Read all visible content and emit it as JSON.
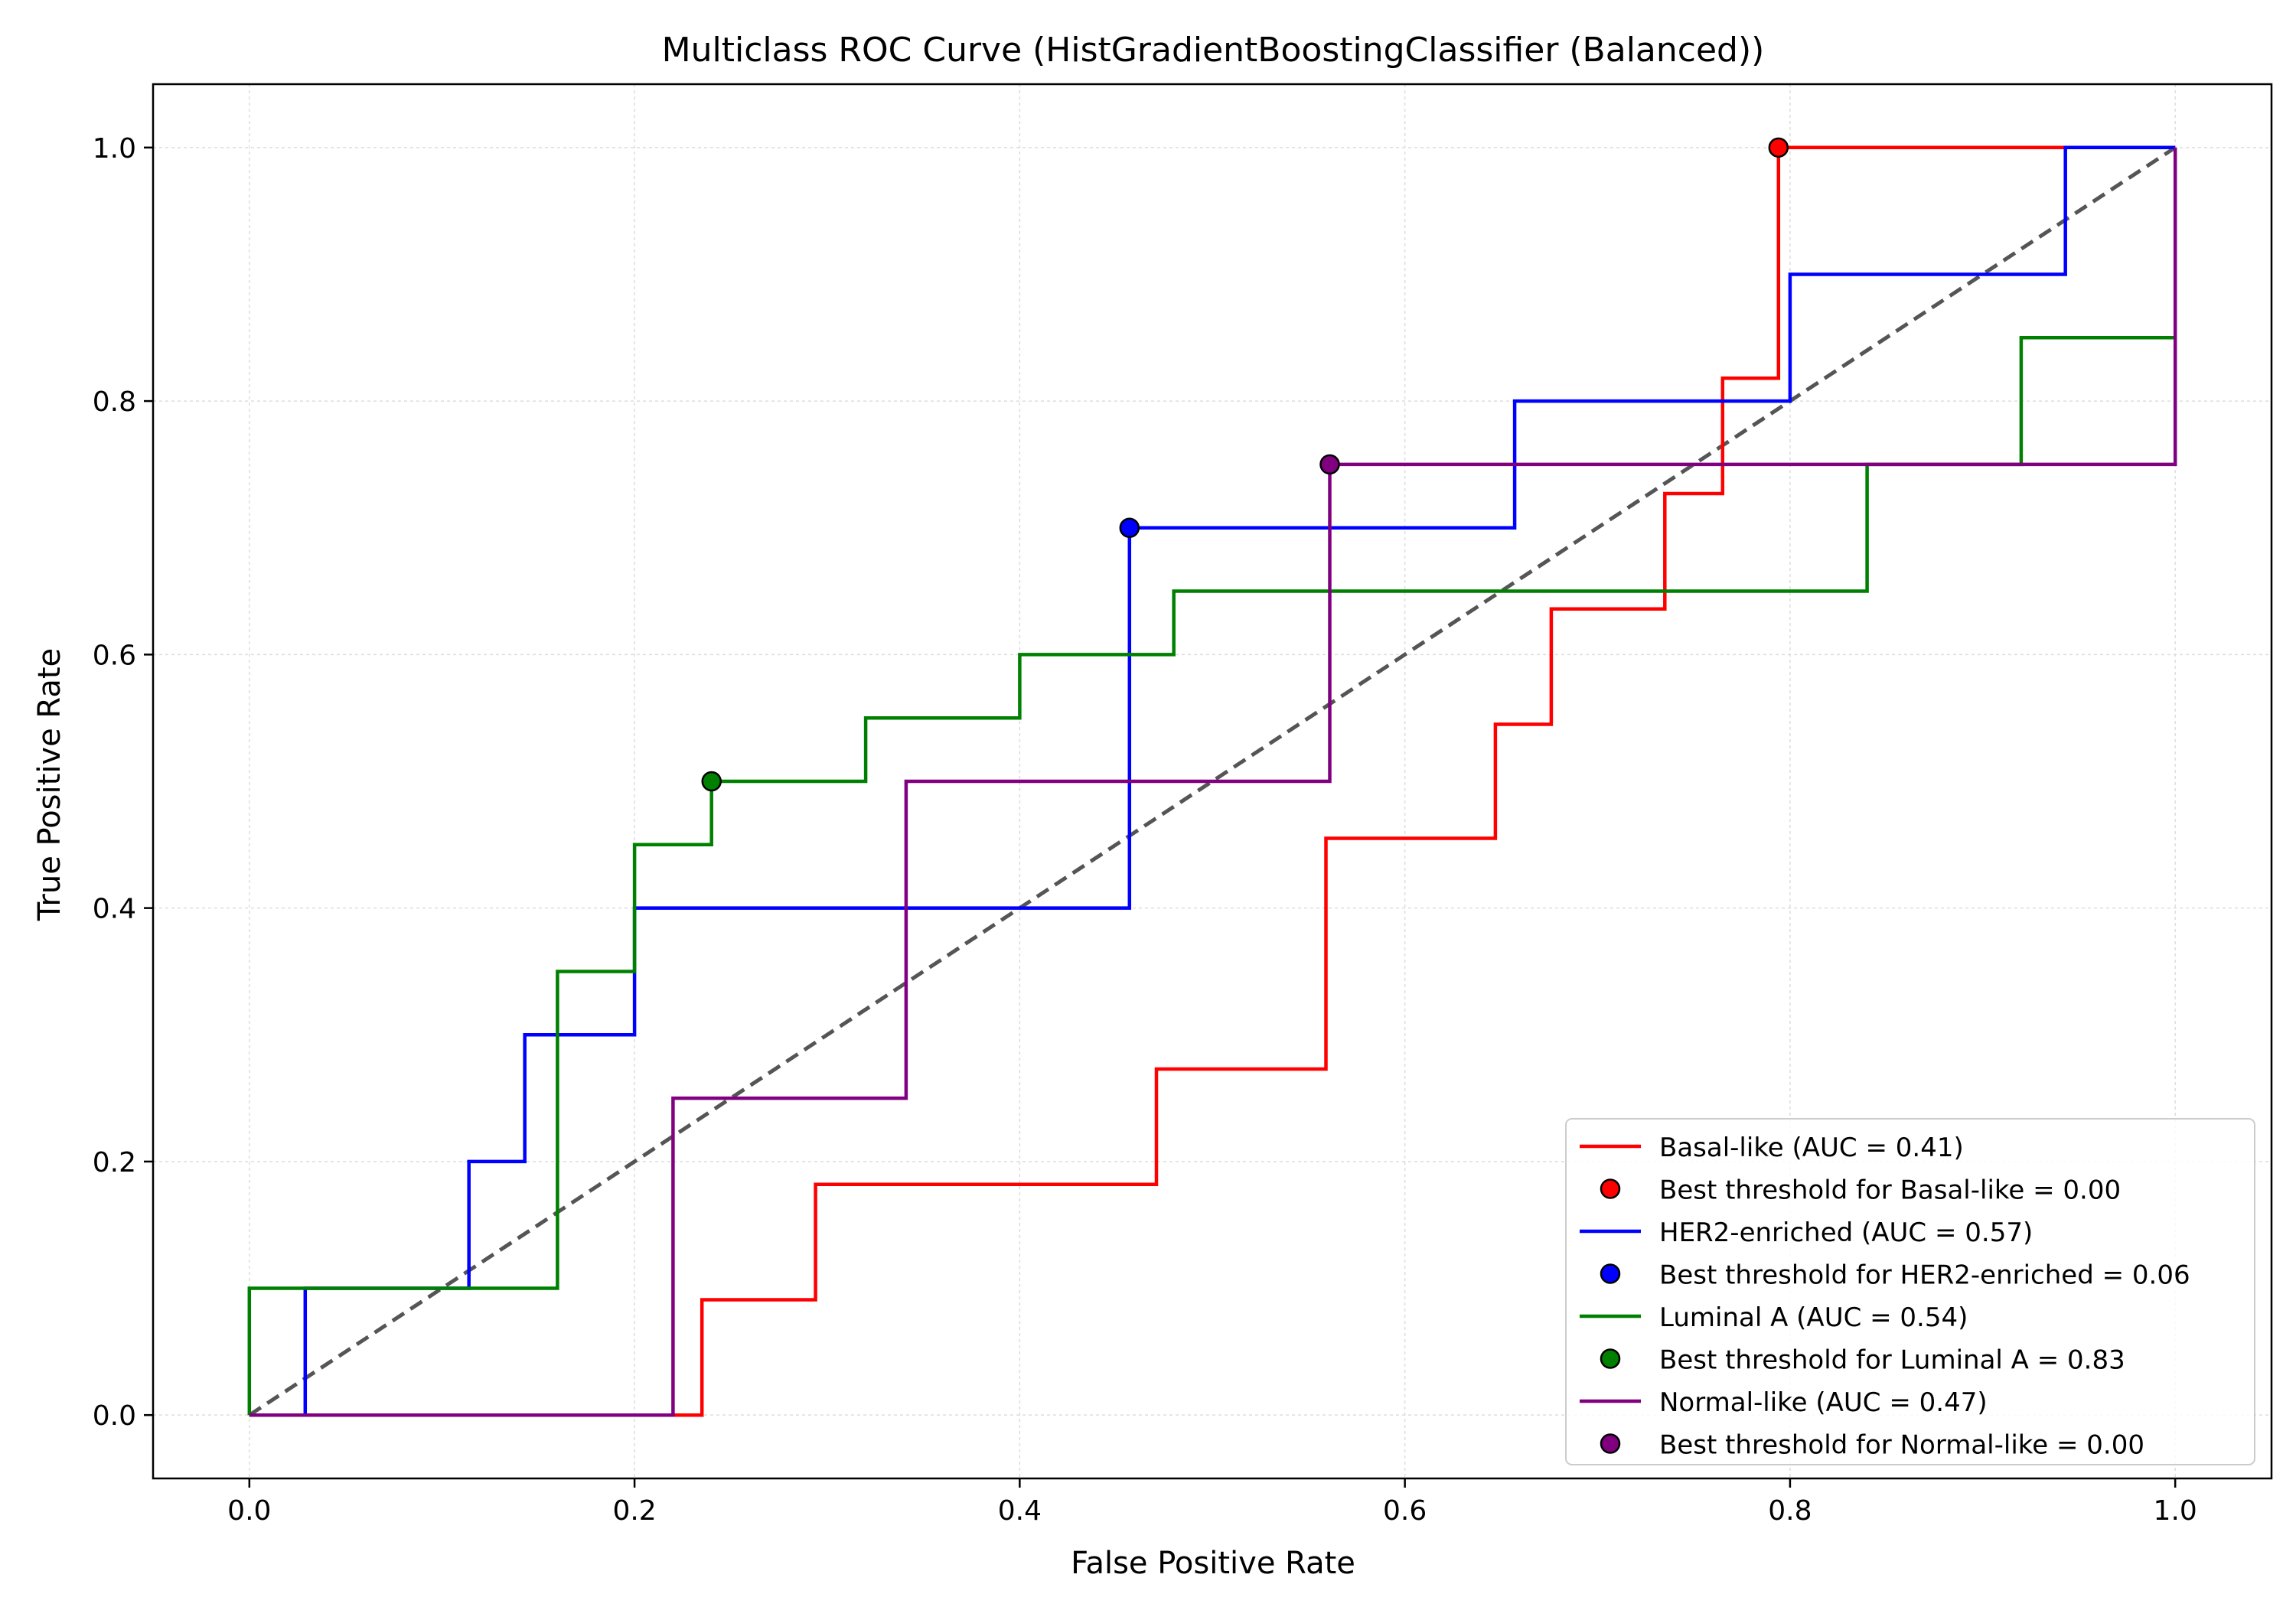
{
  "chart_data": {
    "type": "line",
    "title": "Multiclass ROC Curve (HistGradientBoostingClassifier (Balanced))",
    "xlabel": "False Positive Rate",
    "ylabel": "True Positive Rate",
    "xlim": [
      -0.05,
      1.05
    ],
    "ylim": [
      -0.05,
      1.05
    ],
    "xticks": [
      0.0,
      0.2,
      0.4,
      0.6,
      0.8,
      1.0
    ],
    "yticks": [
      0.0,
      0.2,
      0.4,
      0.6,
      0.8,
      1.0
    ],
    "tick_labels": {
      "x": [
        "0.0",
        "0.2",
        "0.4",
        "0.6",
        "0.8",
        "1.0"
      ],
      "y": [
        "0.0",
        "0.2",
        "0.4",
        "0.6",
        "0.8",
        "1.0"
      ]
    },
    "grid": true,
    "legend_position": "lower-right",
    "diagonal": {
      "x": [
        0,
        1
      ],
      "y": [
        0,
        1
      ],
      "color": "#555555",
      "style": "dashed"
    },
    "series": [
      {
        "name": "Basal-like (AUC = 0.41)",
        "color": "#ff0000",
        "x": [
          0.0,
          0.235,
          0.235,
          0.294,
          0.294,
          0.471,
          0.471,
          0.559,
          0.559,
          0.647,
          0.647,
          0.676,
          0.676,
          0.735,
          0.735,
          0.765,
          0.765,
          0.794,
          0.794,
          1.0
        ],
        "y": [
          0.0,
          0.0,
          0.091,
          0.091,
          0.182,
          0.182,
          0.273,
          0.273,
          0.455,
          0.455,
          0.545,
          0.545,
          0.636,
          0.636,
          0.727,
          0.727,
          0.818,
          0.818,
          1.0,
          1.0
        ],
        "best_point": {
          "label": "Best threshold for Basal-like = 0.00",
          "x": 0.794,
          "y": 1.0
        }
      },
      {
        "name": "HER2-enriched (AUC = 0.57)",
        "color": "#0000ff",
        "x": [
          0.0,
          0.029,
          0.029,
          0.114,
          0.114,
          0.143,
          0.143,
          0.2,
          0.2,
          0.457,
          0.457,
          0.657,
          0.657,
          0.8,
          0.8,
          0.943,
          0.943,
          1.0
        ],
        "y": [
          0.0,
          0.0,
          0.1,
          0.1,
          0.2,
          0.2,
          0.3,
          0.3,
          0.4,
          0.4,
          0.7,
          0.7,
          0.8,
          0.8,
          0.9,
          0.9,
          1.0,
          1.0
        ],
        "best_point": {
          "label": "Best threshold for HER2-enriched = 0.06",
          "x": 0.457,
          "y": 0.7
        }
      },
      {
        "name": "Luminal A (AUC = 0.54)",
        "color": "#008000",
        "x": [
          0.0,
          0.0,
          0.16,
          0.16,
          0.2,
          0.2,
          0.24,
          0.24,
          0.32,
          0.32,
          0.4,
          0.4,
          0.48,
          0.48,
          0.84,
          0.84,
          0.92,
          0.92,
          1.0
        ],
        "y": [
          0.0,
          0.1,
          0.1,
          0.35,
          0.35,
          0.45,
          0.45,
          0.5,
          0.5,
          0.55,
          0.55,
          0.6,
          0.6,
          0.65,
          0.65,
          0.75,
          0.75,
          0.85,
          0.85
        ],
        "best_point": {
          "label": "Best threshold for Luminal A = 0.83",
          "x": 0.24,
          "y": 0.5
        }
      },
      {
        "name": "Normal-like (AUC = 0.47)",
        "color": "#800080",
        "x": [
          0.0,
          0.22,
          0.22,
          0.341,
          0.341,
          0.561,
          0.561,
          1.0,
          1.0
        ],
        "y": [
          0.0,
          0.0,
          0.25,
          0.25,
          0.5,
          0.5,
          0.75,
          0.75,
          1.0
        ],
        "best_point": {
          "label": "Best threshold for Normal-like = 0.00",
          "x": 0.561,
          "y": 0.75
        }
      }
    ]
  }
}
